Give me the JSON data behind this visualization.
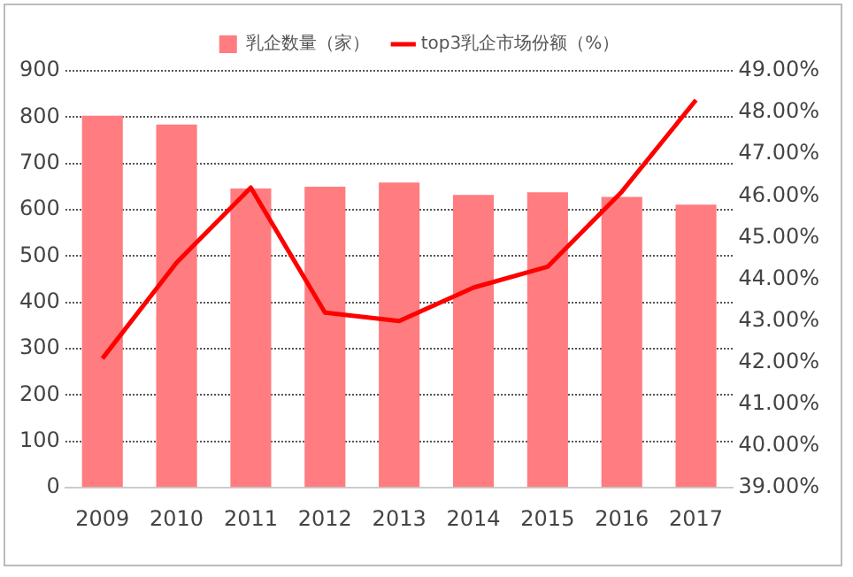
{
  "chart_data": {
    "type": "bar",
    "categories": [
      "2009",
      "2010",
      "2011",
      "2012",
      "2013",
      "2014",
      "2015",
      "2016",
      "2017"
    ],
    "series": [
      {
        "name": "乳企数量（家）",
        "color": "#ff7c80",
        "values": [
          803,
          784,
          646,
          650,
          659,
          632,
          638,
          628,
          611
        ]
      },
      {
        "name": "top3乳企市场份额（%）",
        "type": "line",
        "axis": "y2",
        "color": "#ff0000",
        "values": [
          42.1,
          44.4,
          46.2,
          43.2,
          43.0,
          43.8,
          44.3,
          46.1,
          48.3
        ]
      }
    ],
    "ylim": [
      0,
      900
    ],
    "yticks": [
      0,
      100,
      200,
      300,
      400,
      500,
      600,
      700,
      800,
      900
    ],
    "y2lim": [
      39,
      49
    ],
    "y2ticks": [
      {
        "value": 39,
        "label": "39.00%"
      },
      {
        "value": 40,
        "label": "40.00%"
      },
      {
        "value": 41,
        "label": "41.00%"
      },
      {
        "value": 42,
        "label": "42.00%"
      },
      {
        "value": 43,
        "label": "43.00%"
      },
      {
        "value": 44,
        "label": "44.00%"
      },
      {
        "value": 45,
        "label": "45.00%"
      },
      {
        "value": 46,
        "label": "46.00%"
      },
      {
        "value": 47,
        "label": "47.00%"
      },
      {
        "value": 48,
        "label": "48.00%"
      },
      {
        "value": 49,
        "label": "49.00%"
      }
    ],
    "grid": "y",
    "legend": "top",
    "marker": "none",
    "line_style": "solid"
  }
}
